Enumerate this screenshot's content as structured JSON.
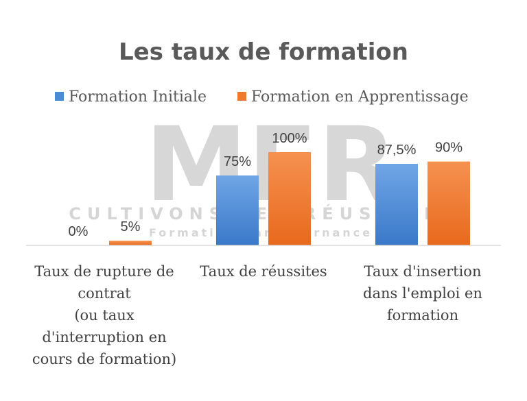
{
  "chart_data": {
    "type": "bar",
    "title": "Les taux de formation",
    "categories": [
      [
        "Taux de rupture de",
        "contrat",
        "(ou taux",
        "d'interruption en",
        "cours de formation)"
      ],
      [
        "Taux de réussites"
      ],
      [
        "Taux d'insertion",
        "dans l'emploi en",
        "formation"
      ]
    ],
    "series": [
      {
        "name": "Formation Initiale",
        "values": [
          0,
          75,
          87.5
        ],
        "labels": [
          "0%",
          "75%",
          "87,5%"
        ],
        "color": "#4a8bd6"
      },
      {
        "name": "Formation en Apprentissage",
        "values": [
          5,
          100,
          90
        ],
        "labels": [
          "5%",
          "100%",
          "90%"
        ],
        "color": "#f07a2a"
      }
    ],
    "ylim": [
      0,
      100
    ],
    "grid": false,
    "legend": "top",
    "watermark": {
      "big": "MFR",
      "mid": "CULTIVONS LES RÉUSSITES",
      "small": "Formation par alternance"
    }
  }
}
